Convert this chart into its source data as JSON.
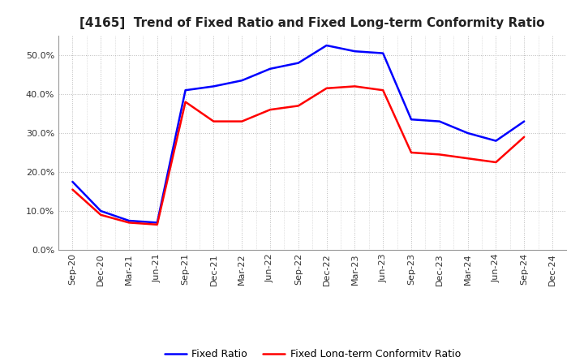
{
  "title": "[4165]  Trend of Fixed Ratio and Fixed Long-term Conformity Ratio",
  "x_labels": [
    "Sep-20",
    "Dec-20",
    "Mar-21",
    "Jun-21",
    "Sep-21",
    "Dec-21",
    "Mar-22",
    "Jun-22",
    "Sep-22",
    "Dec-22",
    "Mar-23",
    "Jun-23",
    "Sep-23",
    "Dec-23",
    "Mar-24",
    "Jun-24",
    "Sep-24",
    "Dec-24"
  ],
  "fixed_ratio": [
    17.5,
    10.0,
    7.5,
    7.0,
    41.0,
    42.0,
    43.5,
    46.5,
    48.0,
    52.5,
    51.0,
    50.5,
    33.5,
    33.0,
    30.0,
    28.0,
    33.0,
    null
  ],
  "fixed_lt_ratio": [
    15.5,
    9.0,
    7.0,
    6.5,
    38.0,
    33.0,
    33.0,
    36.0,
    37.0,
    41.5,
    42.0,
    41.0,
    25.0,
    24.5,
    23.5,
    22.5,
    29.0,
    null
  ],
  "fixed_ratio_color": "#0000ff",
  "fixed_lt_ratio_color": "#ff0000",
  "ylim": [
    0.0,
    55.0
  ],
  "yticks": [
    0,
    10,
    20,
    30,
    40,
    50
  ],
  "background_color": "#ffffff",
  "plot_bg_color": "#ffffff",
  "grid_color": "#bbbbbb",
  "line_width": 1.8,
  "title_fontsize": 11,
  "tick_fontsize": 8,
  "legend_fontsize": 9
}
